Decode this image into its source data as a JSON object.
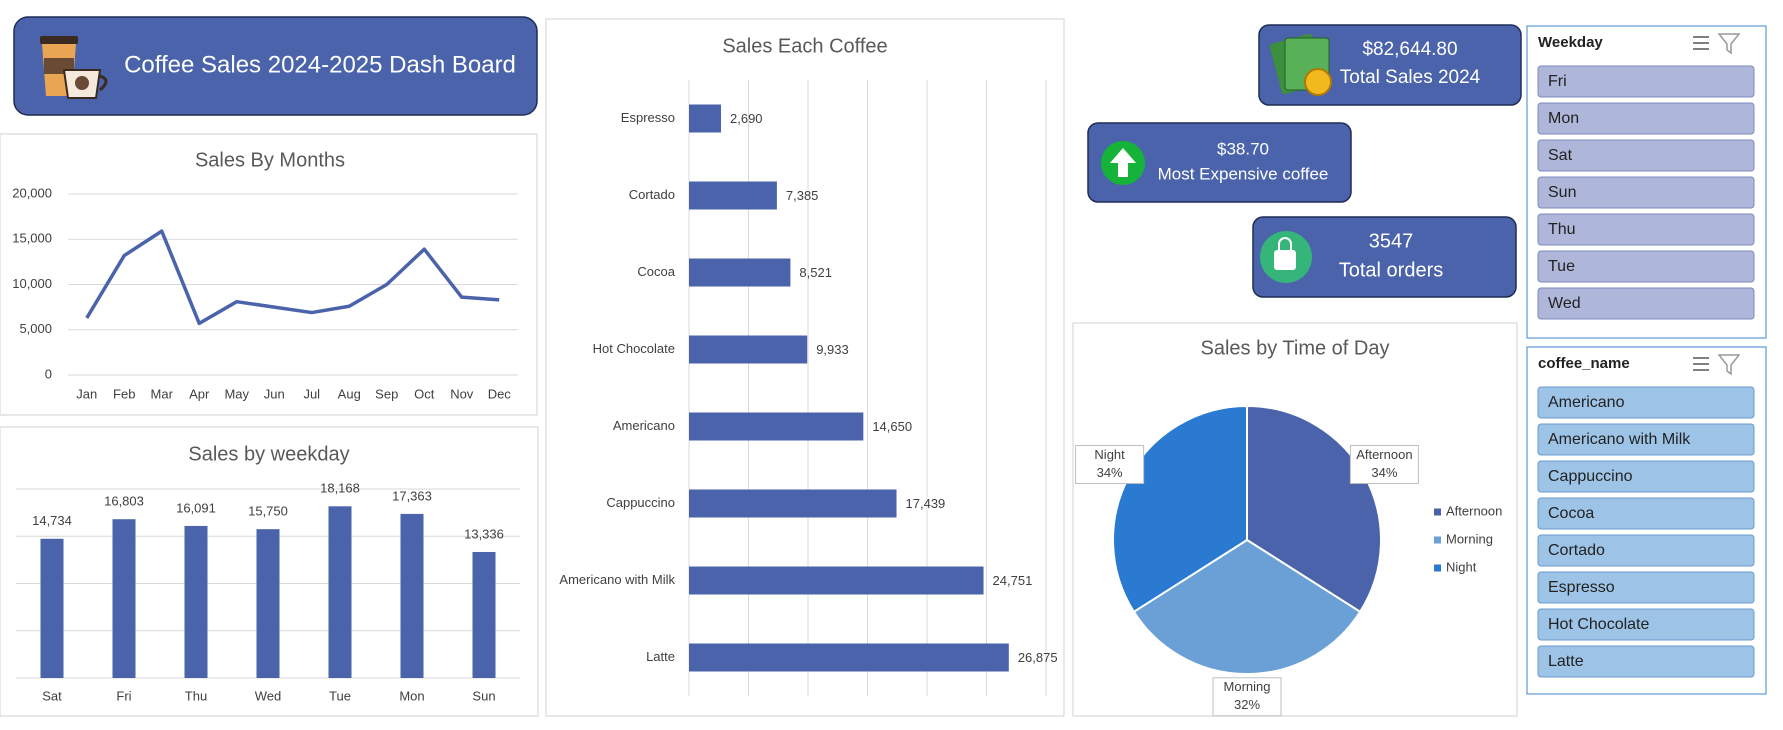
{
  "header": {
    "title": "Coffee Sales 2024-2025 Dash Board"
  },
  "kpis": [
    {
      "value": "$82,644.80",
      "label": "Total Sales 2024"
    },
    {
      "value": "$38.70",
      "label": "Most Expensive coffee"
    },
    {
      "value": "3547",
      "label": "Total orders"
    }
  ],
  "slicers": [
    {
      "title": "Weekday",
      "items": [
        "Fri",
        "Mon",
        "Sat",
        "Sun",
        "Thu",
        "Tue",
        "Wed"
      ]
    },
    {
      "title": "coffee_name",
      "items": [
        "Americano",
        "Americano with Milk",
        "Cappuccino",
        "Cocoa",
        "Cortado",
        "Espresso",
        "Hot Chocolate",
        "Latte"
      ]
    }
  ],
  "chart_data": [
    {
      "type": "line",
      "title": "Sales By Months",
      "categories": [
        "Jan",
        "Feb",
        "Mar",
        "Apr",
        "May",
        "Jun",
        "Jul",
        "Aug",
        "Sep",
        "Oct",
        "Nov",
        "Dec"
      ],
      "values": [
        6300,
        13200,
        15900,
        5700,
        8100,
        7500,
        6900,
        7600,
        10000,
        13900,
        8600,
        8300
      ],
      "color": "#4a63aa",
      "ylim": [
        0,
        20000
      ],
      "yticks": [
        0,
        {
          "value": 5000,
          "label": "5,000"
        },
        {
          "value": 10000,
          "label": "10,000"
        },
        {
          "value": 15000,
          "label": "15,000"
        },
        {
          "value": 20000,
          "label": "20,000"
        }
      ],
      "grid": true
    },
    {
      "type": "bar",
      "title": "Sales by weekday",
      "categories": [
        "Sat",
        "Fri",
        "Thu",
        "Wed",
        "Tue",
        "Mon",
        "Sun"
      ],
      "values": [
        14734,
        16803,
        16091,
        15750,
        18168,
        17363,
        13336
      ],
      "value_labels": [
        "14,734",
        "16,803",
        "16,091",
        "15,750",
        "18,168",
        "17,363",
        "13,336"
      ],
      "color": "#4a63aa",
      "ylim": [
        0,
        20000
      ],
      "yticks": [
        0,
        5000,
        10000,
        15000,
        20000
      ],
      "grid": true
    },
    {
      "type": "bar",
      "orientation": "horizontal",
      "title": "Sales Each Coffee",
      "categories": [
        "Espresso",
        "Cortado",
        "Cocoa",
        "Hot Chocolate",
        "Americano",
        "Cappuccino",
        "Americano with Milk",
        "Latte"
      ],
      "values": [
        2690,
        7385,
        8521,
        9933,
        14650,
        17439,
        24751,
        26875
      ],
      "value_labels": [
        "2,690",
        "7,385",
        "8,521",
        "9,933",
        "14,650",
        "17,439",
        "24,751",
        "26,875"
      ],
      "color": "#4a63aa",
      "xlim": [
        0,
        30000
      ],
      "xticks": [
        0,
        5000,
        10000,
        15000,
        20000,
        25000,
        30000
      ],
      "grid": true
    },
    {
      "type": "pie",
      "title": "Sales by Time of Day",
      "categories": [
        "Afternoon",
        "Morning",
        "Night"
      ],
      "values": [
        34,
        32,
        34
      ],
      "value_labels": [
        "34%",
        "32%",
        "34%"
      ],
      "colors": [
        "#4a63aa",
        "#6aa0d6",
        "#2a7ad2"
      ],
      "legend": "right"
    }
  ]
}
